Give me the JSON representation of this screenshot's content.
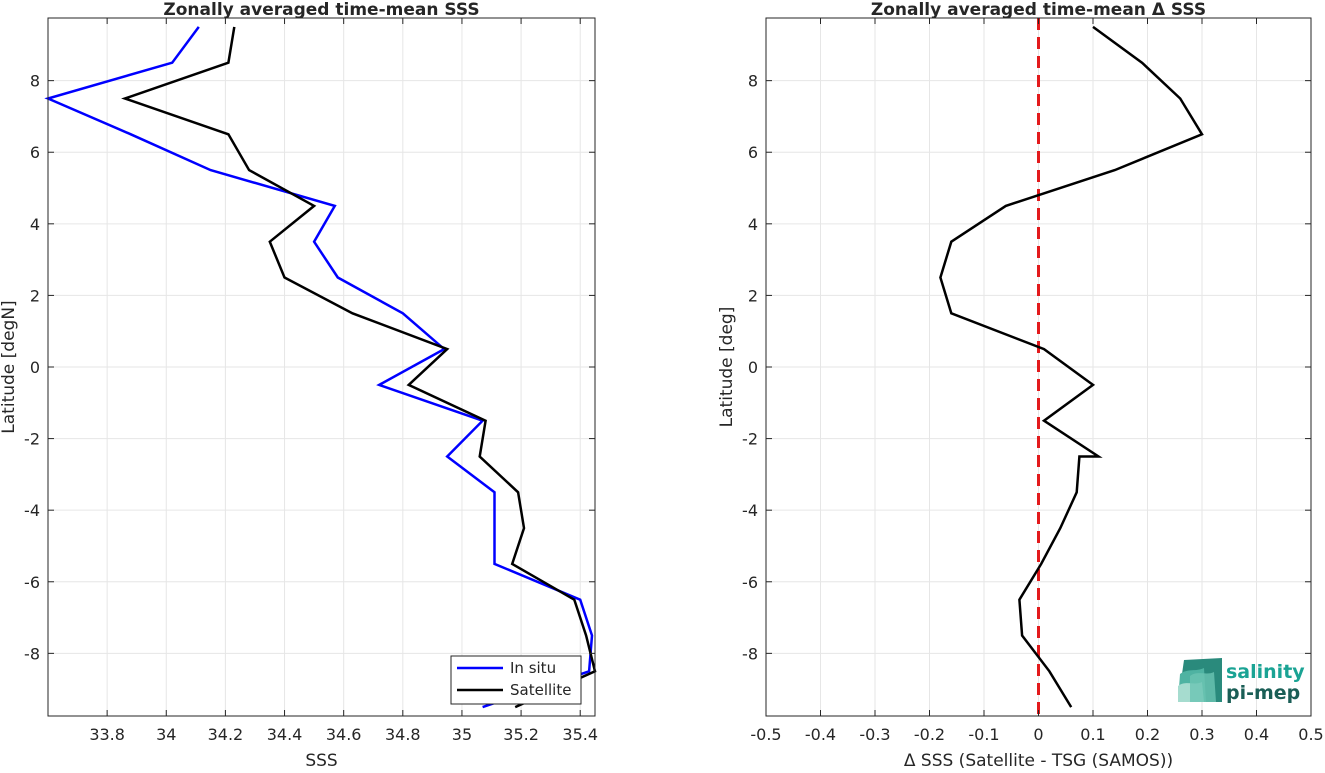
{
  "chart_data": [
    {
      "type": "line",
      "title": "Zonally averaged time-mean SSS",
      "xlabel": "SSS",
      "ylabel": "Latitude [degN]",
      "xlim": [
        33.6,
        35.45
      ],
      "ylim": [
        -9.75,
        9.75
      ],
      "xticks": [
        33.8,
        34,
        34.2,
        34.4,
        34.6,
        34.8,
        35,
        35.2,
        35.4
      ],
      "xtick_labels": [
        "33.8",
        "34",
        "34.2",
        "34.4",
        "34.6",
        "34.8",
        "35",
        "35.2",
        "35.4"
      ],
      "yticks": [
        -8,
        -6,
        -4,
        -2,
        0,
        2,
        4,
        6,
        8
      ],
      "ytick_labels": [
        "-8",
        "-6",
        "-4",
        "-2",
        "0",
        "2",
        "4",
        "6",
        "8"
      ],
      "grid": true,
      "legend_position": "bottom-right",
      "series": [
        {
          "name": "In situ",
          "color": "#0000ff",
          "x": [
            35.07,
            35.43,
            35.44,
            35.4,
            35.11,
            35.11,
            35.11,
            35.11,
            34.95,
            35.07,
            34.72,
            34.94,
            34.8,
            34.58,
            34.5,
            34.57,
            34.15,
            33.88,
            33.6,
            34.02,
            34.11
          ],
          "y": [
            -9.5,
            -8.5,
            -7.5,
            -6.5,
            -5.5,
            -4.5,
            -4.5,
            -3.5,
            -2.5,
            -1.5,
            -0.5,
            0.5,
            1.5,
            2.5,
            3.5,
            4.5,
            5.5,
            6.5,
            7.5,
            8.5,
            9.5
          ]
        },
        {
          "name": "Satellite",
          "color": "#000000",
          "x": [
            35.18,
            35.45,
            35.42,
            35.38,
            35.17,
            35.21,
            35.19,
            35.06,
            35.08,
            34.82,
            34.95,
            34.63,
            34.4,
            34.35,
            34.5,
            34.28,
            34.21,
            33.86,
            34.21,
            34.23
          ],
          "y": [
            -9.5,
            -8.5,
            -7.5,
            -6.5,
            -5.5,
            -4.5,
            -3.5,
            -2.5,
            -1.5,
            -0.5,
            0.5,
            1.5,
            2.5,
            3.5,
            4.5,
            5.5,
            6.5,
            7.5,
            8.5,
            9.5
          ]
        }
      ]
    },
    {
      "type": "line",
      "title": "Zonally averaged time-mean Δ SSS",
      "xlabel": "Δ SSS (Satellite - TSG (SAMOS))",
      "ylabel": "Latitude [deg]",
      "xlim": [
        -0.5,
        0.5
      ],
      "ylim": [
        -9.75,
        9.75
      ],
      "xticks": [
        -0.5,
        -0.4,
        -0.3,
        -0.2,
        -0.1,
        0,
        0.1,
        0.2,
        0.3,
        0.4,
        0.5
      ],
      "xtick_labels": [
        "-0.5",
        "-0.4",
        "-0.3",
        "-0.2",
        "-0.1",
        "0",
        "0.1",
        "0.2",
        "0.3",
        "0.4",
        "0.5"
      ],
      "yticks": [
        -8,
        -6,
        -4,
        -2,
        0,
        2,
        4,
        6,
        8
      ],
      "ytick_labels": [
        "-8",
        "-6",
        "-4",
        "-2",
        "0",
        "2",
        "4",
        "6",
        "8"
      ],
      "grid": true,
      "reference_line": {
        "x": 0,
        "color": "#e31a1c",
        "style": "dashed"
      },
      "series": [
        {
          "color": "#000000",
          "x": [
            0.06,
            0.02,
            -0.03,
            -0.035,
            0.005,
            0.04,
            0.07,
            0.075,
            0.11,
            0.01,
            0.1,
            0.01,
            -0.16,
            -0.18,
            -0.16,
            -0.06,
            0.14,
            0.3,
            0.26,
            0.19,
            0.1
          ],
          "y": [
            -9.5,
            -8.5,
            -7.5,
            -6.5,
            -5.5,
            -4.5,
            -3.5,
            -2.5,
            -2.5,
            -1.5,
            -0.5,
            0.5,
            1.5,
            2.5,
            3.5,
            4.5,
            5.5,
            6.5,
            7.5,
            8.5,
            9.5
          ]
        }
      ]
    }
  ],
  "logo": {
    "line1": "salinity",
    "line2": "pi-mep",
    "color": "#1aa394"
  }
}
